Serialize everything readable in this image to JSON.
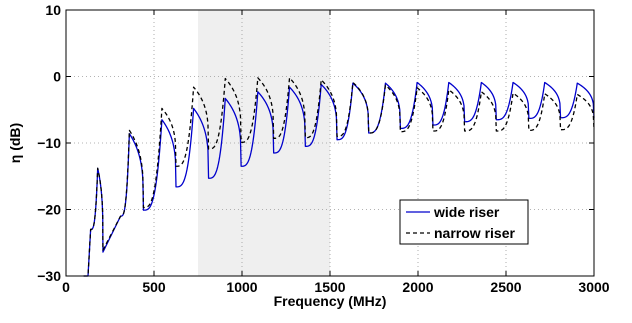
{
  "chart_data": {
    "type": "line",
    "title": "",
    "xlabel": "Frequency (MHz)",
    "ylabel": "η (dB)",
    "xlim": [
      0,
      3000
    ],
    "ylim": [
      -30,
      10
    ],
    "xticks": [
      0,
      500,
      1000,
      1500,
      2000,
      2500,
      3000
    ],
    "yticks": [
      -30,
      -20,
      -10,
      0,
      10
    ],
    "xtick_labels": [
      "0",
      "500",
      "1000",
      "1500",
      "2000",
      "2500",
      "3000"
    ],
    "ytick_labels": [
      "−30",
      "−20",
      "−10",
      "0",
      "10"
    ],
    "grid": true,
    "legend_position": "lower-right",
    "shaded_band": {
      "x_start": 750,
      "x_end": 1500,
      "color": "#efefef"
    },
    "series": [
      {
        "name": "wide riser",
        "color": "#0000cc",
        "style": "solid",
        "peaks": [
          [
            180,
            -13.8
          ],
          [
            360,
            -8.6
          ],
          [
            545,
            -6.5
          ],
          [
            725,
            -4.8
          ],
          [
            905,
            -3.3
          ],
          [
            1090,
            -2.3
          ],
          [
            1270,
            -1.6
          ],
          [
            1450,
            -1.2
          ],
          [
            1630,
            -1.0
          ],
          [
            1815,
            -1.0
          ],
          [
            1995,
            -0.9
          ],
          [
            2175,
            -0.9
          ],
          [
            2360,
            -0.9
          ],
          [
            2540,
            -0.9
          ],
          [
            2720,
            -0.9
          ],
          [
            2905,
            -1.0
          ]
        ],
        "troughs": [
          [
            100,
            -30
          ],
          [
            125,
            -30
          ],
          [
            140,
            -23
          ],
          [
            210,
            -26.4
          ],
          [
            310,
            -21
          ],
          [
            440,
            -20.1
          ],
          [
            625,
            -16.6
          ],
          [
            810,
            -15.3
          ],
          [
            995,
            -13.5
          ],
          [
            1180,
            -11.5
          ],
          [
            1360,
            -10.5
          ],
          [
            1540,
            -9.5
          ],
          [
            1720,
            -8.5
          ],
          [
            1900,
            -7.8
          ],
          [
            2085,
            -7.3
          ],
          [
            2265,
            -6.8
          ],
          [
            2445,
            -6.5
          ],
          [
            2630,
            -6.3
          ],
          [
            2810,
            -6.2
          ],
          [
            3000,
            -6.2
          ]
        ]
      },
      {
        "name": "narrow riser",
        "color": "#000000",
        "style": "dashed",
        "peaks": [
          [
            180,
            -13.8
          ],
          [
            360,
            -8.1
          ],
          [
            545,
            -4.8
          ],
          [
            725,
            -1.6
          ],
          [
            905,
            -0.3
          ],
          [
            1090,
            -0.2
          ],
          [
            1270,
            -0.2
          ],
          [
            1450,
            -0.5
          ],
          [
            1630,
            -0.9
          ],
          [
            1815,
            -1.3
          ],
          [
            1995,
            -1.7
          ],
          [
            2175,
            -2.0
          ],
          [
            2360,
            -2.3
          ],
          [
            2540,
            -2.5
          ],
          [
            2720,
            -2.6
          ],
          [
            2905,
            -2.7
          ]
        ],
        "troughs": [
          [
            100,
            -30
          ],
          [
            125,
            -30
          ],
          [
            140,
            -23
          ],
          [
            210,
            -26.1
          ],
          [
            310,
            -21
          ],
          [
            440,
            -19.7
          ],
          [
            625,
            -13.5
          ],
          [
            810,
            -10.9
          ],
          [
            995,
            -9.9
          ],
          [
            1180,
            -9.3
          ],
          [
            1360,
            -9.2
          ],
          [
            1540,
            -9.0
          ],
          [
            1720,
            -8.5
          ],
          [
            1900,
            -8.3
          ],
          [
            2085,
            -8.2
          ],
          [
            2265,
            -8.2
          ],
          [
            2445,
            -8.2
          ],
          [
            2630,
            -8.1
          ],
          [
            2810,
            -8.0
          ],
          [
            3000,
            -7.9
          ]
        ]
      }
    ]
  }
}
